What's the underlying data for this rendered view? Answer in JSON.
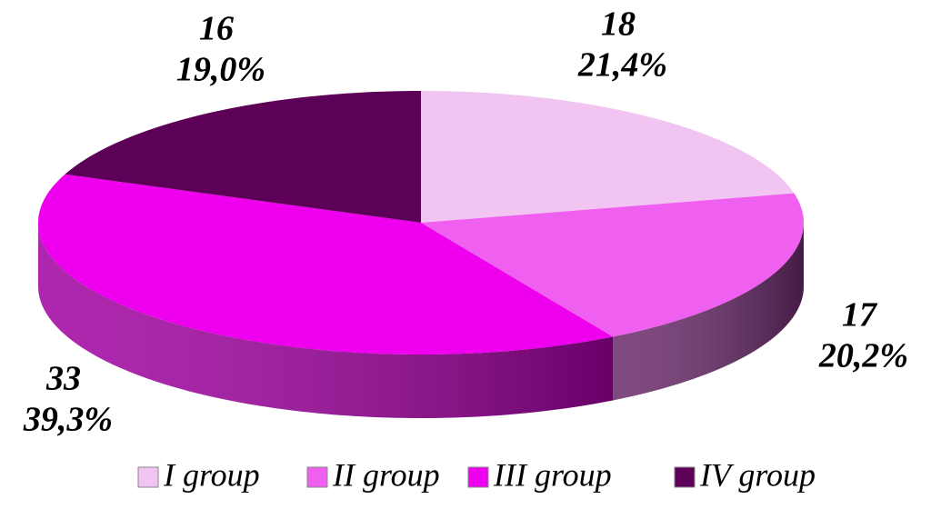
{
  "chart_data": {
    "type": "pie3d",
    "categories": [
      "I group",
      "II group",
      "III group",
      "IV group"
    ],
    "values": [
      21.4,
      20.2,
      39.3,
      19.0
    ],
    "value_labels": [
      "21,4%",
      "20,2%",
      "39,3%",
      "19,0%"
    ],
    "counts": [
      18,
      17,
      33,
      16
    ],
    "colors": [
      "#f2c4f2",
      "#f060f0",
      "#ee00ee",
      "#5c0058"
    ],
    "side_colors": [
      "#c89ac8",
      "#6a2a6a",
      "#a000a0",
      "#3a0038"
    ],
    "legend": "bottom"
  }
}
